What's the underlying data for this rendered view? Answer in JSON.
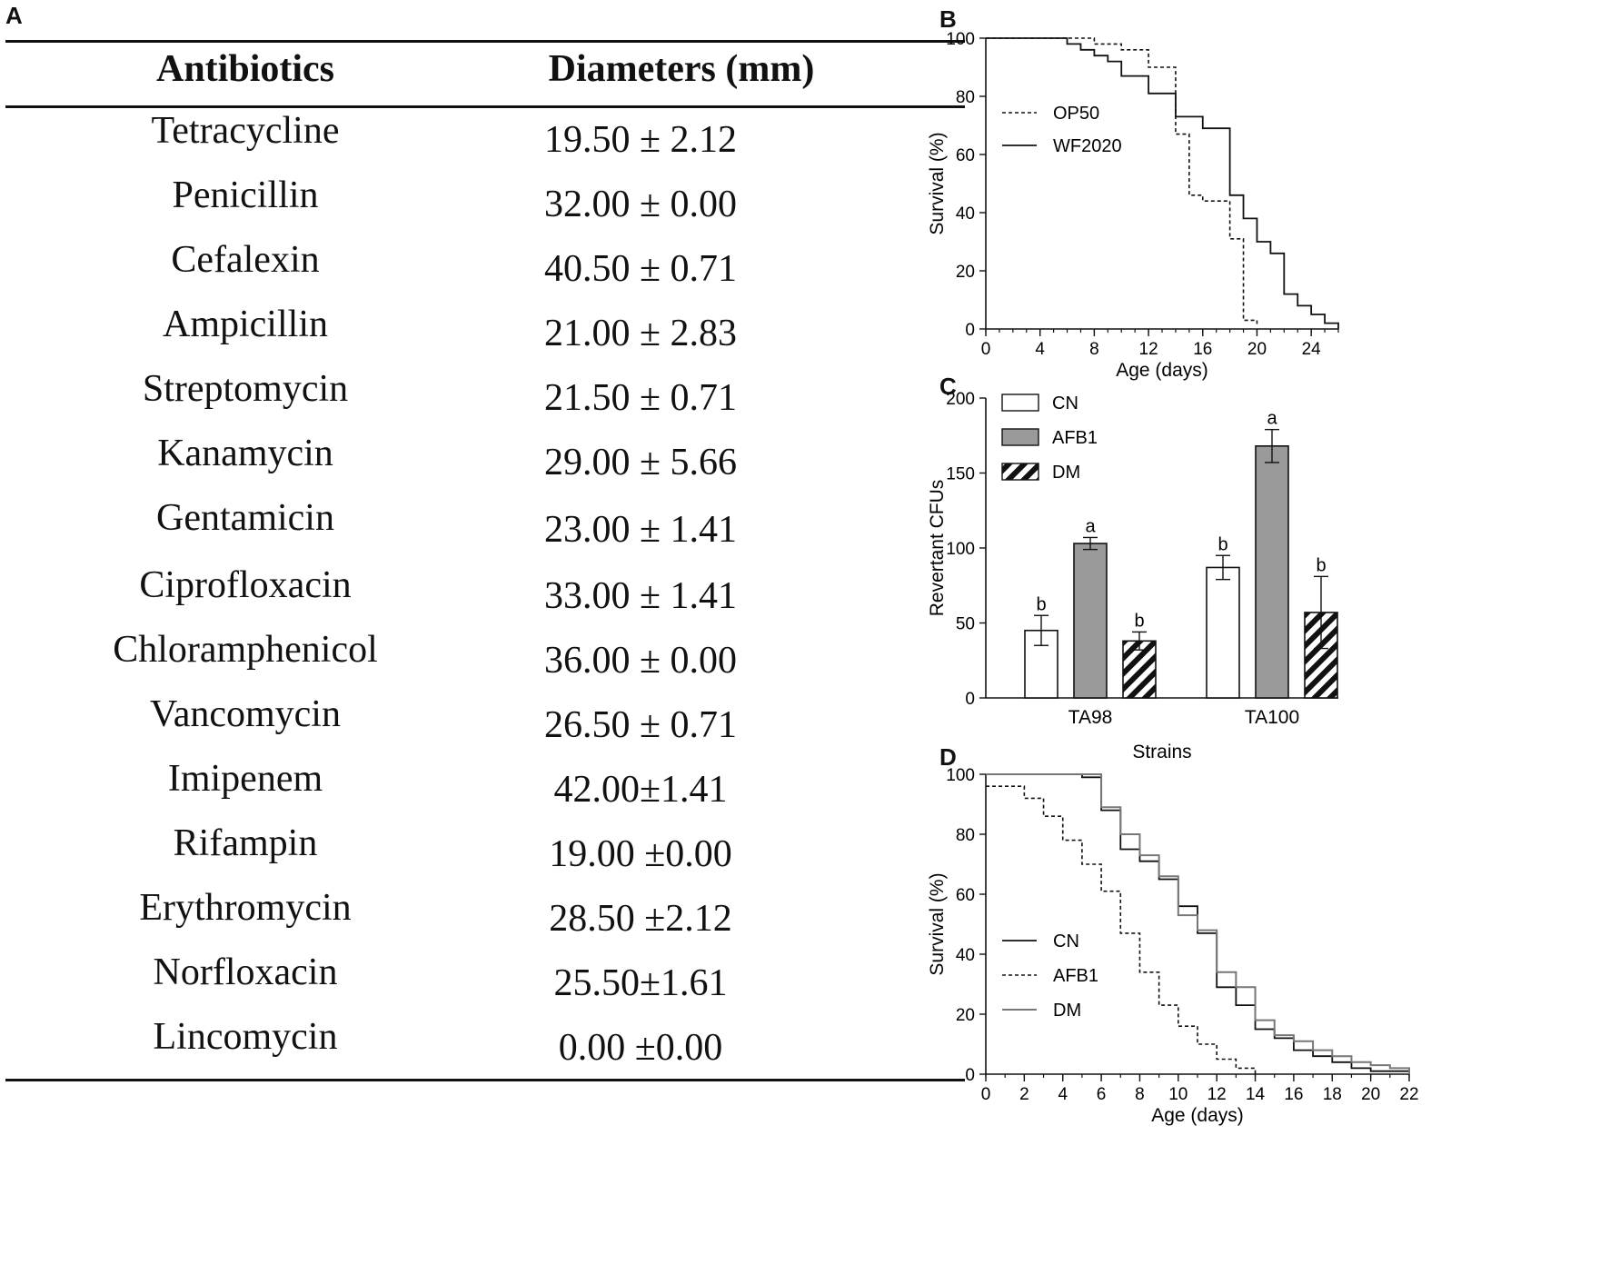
{
  "panel_labels": {
    "a": "A",
    "b": "B",
    "c": "C",
    "d": "D"
  },
  "table": {
    "headers": [
      "Antibiotics",
      "Diameters (mm)"
    ],
    "rows": [
      {
        "antibiotic": "Tetracycline",
        "diameter": "19.50 ± 2.12"
      },
      {
        "antibiotic": "Penicillin",
        "diameter": "32.00 ± 0.00"
      },
      {
        "antibiotic": "Cefalexin",
        "diameter": "40.50 ± 0.71"
      },
      {
        "antibiotic": "Ampicillin",
        "diameter": "21.00 ± 2.83"
      },
      {
        "antibiotic": "Streptomycin",
        "diameter": "21.50 ± 0.71"
      },
      {
        "antibiotic": "Kanamycin",
        "diameter": "29.00 ± 5.66"
      },
      {
        "antibiotic": "Gentamicin",
        "diameter": "23.00 ± 1.41"
      },
      {
        "antibiotic": "Ciprofloxacin",
        "diameter": "33.00 ± 1.41"
      },
      {
        "antibiotic": "Chloramphenicol",
        "diameter": "36.00 ± 0.00"
      },
      {
        "antibiotic": "Vancomycin",
        "diameter": "26.50 ± 0.71"
      },
      {
        "antibiotic": "Imipenem",
        "diameter": "42.00±1.41"
      },
      {
        "antibiotic": "Rifampin",
        "diameter": "19.00 ±0.00"
      },
      {
        "antibiotic": "Erythromycin",
        "diameter": "28.50 ±2.12"
      },
      {
        "antibiotic": "Norfloxacin",
        "diameter": "25.50±1.61"
      },
      {
        "antibiotic": "Lincomycin",
        "diameter": "0.00 ±0.00"
      }
    ]
  },
  "chart_data": [
    {
      "panel": "B",
      "type": "line",
      "step": true,
      "xlabel": "Age (days)",
      "ylabel": "Survival (%)",
      "xlim": [
        0,
        26
      ],
      "ylim": [
        0,
        100
      ],
      "xticks": [
        "0",
        "4",
        "8",
        "12",
        "16",
        "20",
        "24"
      ],
      "yticks": [
        "0",
        "20",
        "40",
        "60",
        "80",
        "100"
      ],
      "legend_position": "center-left",
      "series": [
        {
          "name": "OP50",
          "style": "dashed",
          "x": [
            0,
            8,
            10,
            12,
            14,
            15,
            16,
            18,
            19,
            20
          ],
          "y": [
            100,
            98,
            96,
            90,
            67,
            46,
            44,
            31,
            3,
            1
          ]
        },
        {
          "name": "WF2020",
          "style": "solid",
          "x": [
            0,
            6,
            7,
            8,
            9,
            10,
            12,
            14,
            16,
            18,
            19,
            20,
            21,
            22,
            23,
            24,
            25,
            26
          ],
          "y": [
            100,
            98,
            96,
            94,
            92,
            87,
            81,
            73,
            69,
            46,
            38,
            30,
            26,
            12,
            8,
            5,
            2,
            0
          ]
        }
      ]
    },
    {
      "panel": "C",
      "type": "bar",
      "xlabel": "Strains",
      "ylabel": "Revertant CFUs",
      "ylim": [
        0,
        200
      ],
      "yticks": [
        "0",
        "50",
        "100",
        "150",
        "200"
      ],
      "categories": [
        "TA98",
        "TA100"
      ],
      "legend_position": "top-left",
      "series": [
        {
          "name": "CN",
          "fill": "white",
          "values": [
            45,
            87
          ],
          "errors": [
            10,
            8
          ],
          "letters": [
            "b",
            "b"
          ]
        },
        {
          "name": "AFB1",
          "fill": "gray",
          "values": [
            103,
            168
          ],
          "errors": [
            4,
            11
          ],
          "letters": [
            "a",
            "a"
          ]
        },
        {
          "name": "DM",
          "fill": "hatched",
          "values": [
            38,
            57
          ],
          "errors": [
            6,
            24
          ],
          "letters": [
            "b",
            "b"
          ]
        }
      ]
    },
    {
      "panel": "D",
      "type": "line",
      "step": true,
      "xlabel": "Age (days)",
      "ylabel": "Survival (%)",
      "xlim": [
        0,
        22
      ],
      "ylim": [
        0,
        100
      ],
      "xticks": [
        "0",
        "2",
        "4",
        "6",
        "8",
        "10",
        "12",
        "14",
        "16",
        "18",
        "20",
        "22"
      ],
      "yticks": [
        "0",
        "20",
        "40",
        "60",
        "80",
        "100"
      ],
      "legend_position": "bottom-left",
      "series": [
        {
          "name": "CN",
          "style": "solid-black",
          "x": [
            0,
            5,
            6,
            7,
            8,
            9,
            10,
            11,
            12,
            13,
            14,
            15,
            16,
            17,
            18,
            19,
            20,
            21,
            22
          ],
          "y": [
            100,
            99,
            88,
            75,
            71,
            65,
            56,
            47,
            29,
            23,
            15,
            12,
            8,
            6,
            4,
            2,
            1,
            1,
            0
          ]
        },
        {
          "name": "AFB1",
          "style": "dashed",
          "x": [
            0,
            2,
            3,
            4,
            5,
            6,
            7,
            8,
            9,
            10,
            11,
            12,
            13,
            14
          ],
          "y": [
            96,
            92,
            86,
            78,
            70,
            61,
            47,
            34,
            23,
            16,
            10,
            5,
            2,
            0
          ]
        },
        {
          "name": "DM",
          "style": "solid-gray",
          "x": [
            0,
            6,
            7,
            8,
            9,
            10,
            11,
            12,
            13,
            14,
            15,
            16,
            17,
            18,
            19,
            20,
            21,
            22
          ],
          "y": [
            100,
            89,
            80,
            73,
            66,
            53,
            48,
            34,
            29,
            18,
            13,
            11,
            8,
            6,
            4,
            3,
            2,
            0
          ]
        }
      ]
    }
  ]
}
